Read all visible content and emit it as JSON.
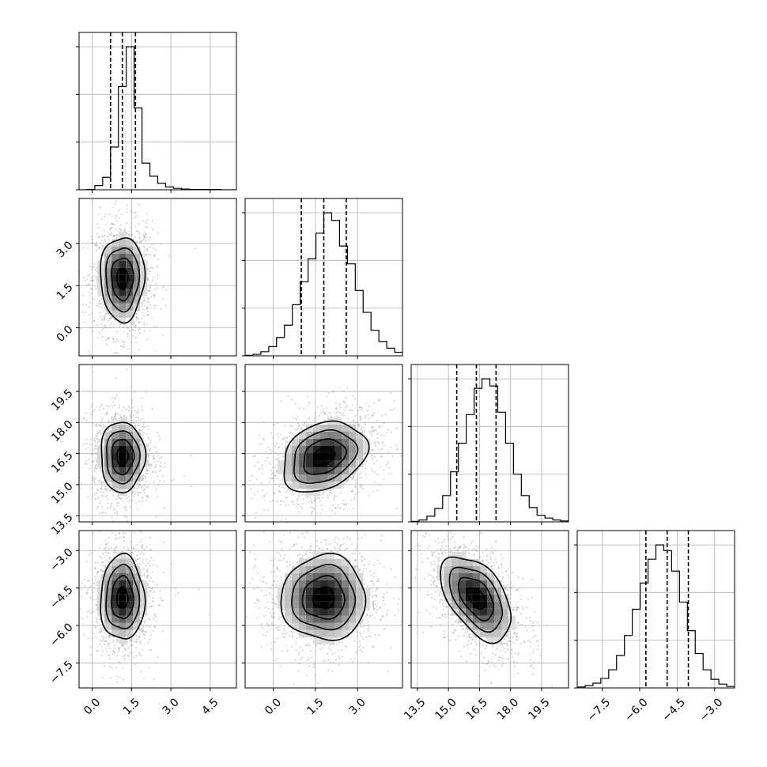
{
  "chart_data": {
    "type": "corner",
    "grid": true,
    "xlabel": "",
    "ylabel": "",
    "parameters": [
      {
        "range": [
          -0.5,
          5.5
        ],
        "ticks": [
          "0.0",
          "1.5",
          "3.0",
          "4.5"
        ],
        "tick_values": [
          0.0,
          1.5,
          3.0,
          4.5
        ],
        "quantiles": [
          0.7,
          1.15,
          1.65
        ]
      },
      {
        "range": [
          -1.0,
          4.6
        ],
        "ticks": [
          "0.0",
          "1.5",
          "3.0"
        ],
        "tick_values": [
          0.0,
          1.5,
          3.0
        ],
        "quantiles": [
          1.0,
          1.8,
          2.6
        ]
      },
      {
        "range": [
          13.2,
          20.8
        ],
        "ticks": [
          "13.5",
          "15.0",
          "16.5",
          "18.0",
          "19.5"
        ],
        "tick_values": [
          13.5,
          15.0,
          16.5,
          18.0,
          19.5
        ],
        "quantiles": [
          15.4,
          16.35,
          17.3
        ]
      },
      {
        "range": [
          -8.5,
          -2.2
        ],
        "ticks": [
          "−7.5",
          "−6.0",
          "−4.5",
          "−3.0"
        ],
        "tick_values": [
          -7.5,
          -6.0,
          -4.5,
          -3.0
        ],
        "quantiles": [
          -5.75,
          -4.9,
          -4.05
        ]
      }
    ],
    "histograms": [
      {
        "bin_start": -0.5,
        "bin_width": 0.3,
        "counts": [
          0,
          1,
          12,
          35,
          120,
          290,
          402,
          230,
          75,
          38,
          18,
          8,
          4,
          2,
          1,
          1,
          1,
          1,
          0,
          0
        ]
      },
      {
        "bin_start": -1.0,
        "bin_width": 0.28,
        "counts": [
          1,
          3,
          8,
          18,
          36,
          60,
          100,
          145,
          190,
          240,
          280,
          265,
          215,
          180,
          128,
          85,
          50,
          28,
          15,
          7
        ]
      },
      {
        "bin_start": 13.2,
        "bin_width": 0.38,
        "counts": [
          1,
          4,
          12,
          28,
          55,
          105,
          165,
          225,
          280,
          300,
          285,
          230,
          165,
          100,
          55,
          30,
          14,
          8,
          4,
          2
        ]
      },
      {
        "bin_start": -8.5,
        "bin_width": 0.315,
        "counts": [
          2,
          5,
          10,
          20,
          38,
          68,
          110,
          165,
          220,
          270,
          300,
          288,
          245,
          180,
          120,
          72,
          38,
          18,
          8,
          3
        ]
      }
    ],
    "pairs": [
      {
        "x": 0,
        "y": 1,
        "center": [
          1.15,
          1.75
        ],
        "sx": 0.42,
        "sy": 0.75,
        "rho": 0.0
      },
      {
        "x": 0,
        "y": 2,
        "center": [
          1.15,
          16.35
        ],
        "sx": 0.42,
        "sy": 0.85,
        "rho": 0.0
      },
      {
        "x": 1,
        "y": 2,
        "center": [
          1.8,
          16.35
        ],
        "sx": 0.75,
        "sy": 0.85,
        "rho": 0.28
      },
      {
        "x": 0,
        "y": 3,
        "center": [
          1.15,
          -4.9
        ],
        "sx": 0.42,
        "sy": 0.85,
        "rho": 0.0
      },
      {
        "x": 1,
        "y": 3,
        "center": [
          1.8,
          -4.9
        ],
        "sx": 0.75,
        "sy": 0.85,
        "rho": 0.0
      },
      {
        "x": 2,
        "y": 3,
        "center": [
          16.35,
          -4.9
        ],
        "sx": 0.85,
        "sy": 0.85,
        "rho": -0.5
      }
    ],
    "contour_levels": [
      0.5,
      1.0,
      1.5,
      2.0
    ],
    "colors": {
      "line": "#000000",
      "grid": "#b0b0b0",
      "point": "#9a9a9a",
      "density_dark": "#000000"
    }
  }
}
